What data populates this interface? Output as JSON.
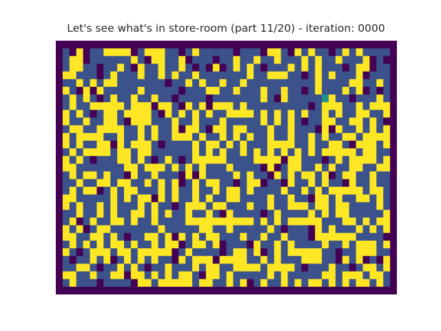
{
  "title": "Let's see what's in store-room (part 11/20) - iteration: 0000",
  "colors": {
    "wall": "#440154",
    "floor": "#3b528b",
    "box": "#fde725",
    "agent": "#21918c"
  },
  "legend": {
    "#": "wall",
    ".": "floor",
    "o": "box",
    "A": "agent"
  },
  "grid": [
    "##################################################",
    "#.#o#..oooo#.ooo..#.o.....#...#oo.#o.o..#.o.o....#",
    "#.oo#......o.#oo..o#...#..o..o..o...o.o..o...o#.##",
    "#.oo..#..o.#o..o..o.#.#o#.o.o.#...o.o.o...#.oo#..#",
    "#oo...#.o...o..o.o..o.......o..ooo..#.o.o...o#...#",
    "#..o.o.oo.......#..o.o..o..o..........o....oo..o.#",
    "#o.#o#o.....o.....#...oo..o...o..o..#.o...o.o#.#.#",
    "#.o.o.#.o..o..o..#....#.......o.#o.....Ao..#...o.#",
    "#.o..ooooo.ooo#oo.#o.o#ooo.o.........#.ooo..o.ooo#",
    "#o.o.#.oo.oooo.#o.o.o.o..oooo.o.o.o.o..o.o..oo..o#",
    "#o..o..oo.#ooo...o..o...o.....o.o.o.#..oo..oo.o.##",
    "#.oo..oooo..o.o..o#oo.#oo.oo...o..o...#o#o..o.o.o#",
    "#o.oooo..o..o.o..ooo.o..o.o.o..o..o..o.o..oo.oooo#",
    "#o.o..oo#o.ooo.#....o.oo.o.o...oooo..o..oo.#ooo.o#",
    "#.o.oooo.oo.oo......o.o.o..o.o.o.o.o.o.ooooo.oo..#",
    "#o.o.#...oo.o.#.o.#.ooooo....oooo#oo...#.o.oooo.o#",
    "#oo.......oo.ooo.o.o.o...o....#o#.oo..o.o..oo..oo#",
    "#.o.oo.o..#o..o...#o#o....o.o..#o.o.oo.o#.oo..o..#",
    "#..o..oo.oo..o.o.o#.o.oo..#.oo#..#o..o.o..#o..o..#",
    "#.o.oo#.o.oo...o.o..o..o.oo.o....o..o.o.ooooo.oo.#",
    "#oo.....o.o.oo#o.o..o.o..oo....o..o..#oo.o..oo.o.#",
    "#o.o..o.o...o.o..#.ooo.oo...o..o..ooo.oo.oo....o.#",
    "#..o..o.o..oo.o.o..o..o.#o....#.o....o.o.oo.....o#",
    "#.o#.o..oo.o..o....oooooooooo.o.o.ooooo...oo.o.oo#",
    "#o.o#.oo.......o.....oo..o.....o.#...#o.o...o.o.o#",
    "#oo..oo.o.#..oo.o#o.o.oo...o..o..o...#oooooo....##",
    "#.o.o.o.oo.o..o.oo#.oo.o#...#o..o.o....o..o.ooo.o#",
    "#o.#.ooo.oo.ooooo#.o....#.oo.o#.o.ooooo..#..ooo..#",
    "#.#..o.o#.o.o.o..#o.ooo#oooo..o.o...ooo..#o.o#.#o#",
    "#..oo.#..o.o.#..o...o.oo..oooo.oooo.#...o..#.oo.o#",
    "#oo..o..oo#oo.o.o.oo.#oo.o.....o.o.....oo.ooo.oo.#",
    "#.o...#....#oo.ooooo.oo..o.o#.o..o.o.oo.o.o.oo.o.#",
    "##################################################"
  ]
}
